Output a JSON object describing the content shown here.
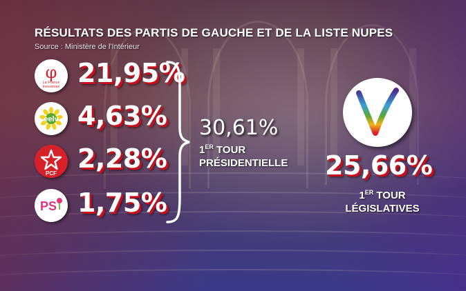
{
  "title": "RÉSULTATS DES PARTIS DE GAUCHE ET DE LA LISTE NUPES",
  "source": "Source :  Ministère de l'Intérieur",
  "chart_data": {
    "type": "table",
    "title": "RÉSULTATS DES PARTIS DE GAUCHE ET DE LA LISTE NUPES",
    "rows": [
      {
        "party": "La France insoumise",
        "logo_text": "La France insoumise",
        "value": 21.95,
        "label": "21,95%"
      },
      {
        "party": "EELV",
        "logo_text": "eelv",
        "value": 4.63,
        "label": "4,63%"
      },
      {
        "party": "PCF",
        "logo_text": "PCF",
        "value": 2.28,
        "label": "2,28%"
      },
      {
        "party": "PS",
        "logo_text": "PS",
        "value": 1.75,
        "label": "1,75%"
      }
    ],
    "total_presidential": {
      "value": 30.61,
      "label": "30,61%",
      "round": "1",
      "round_suffix": "ER",
      "round_word": "TOUR",
      "election": "PRÉSIDENTIELLE"
    },
    "nupes_legislative": {
      "value": 25.66,
      "label": "25,66%",
      "round": "1",
      "round_suffix": "ER",
      "round_word": "TOUR",
      "election": "LÉGISLATIVES"
    }
  },
  "colors": {
    "value_shadow": "#c7101c",
    "lfi_red": "#d6202a",
    "eelv_green": "#5aa832",
    "eelv_yellow": "#f2d21a",
    "pcf_red": "#d6202a",
    "ps_pink": "#e5337a"
  },
  "icons": {
    "lfi": "phi-logo-icon",
    "eelv": "eelv-sunflower-logo-icon",
    "pcf": "pcf-star-logo-icon",
    "ps": "ps-rose-logo-icon",
    "nupes": "nupes-v-logo-icon"
  }
}
